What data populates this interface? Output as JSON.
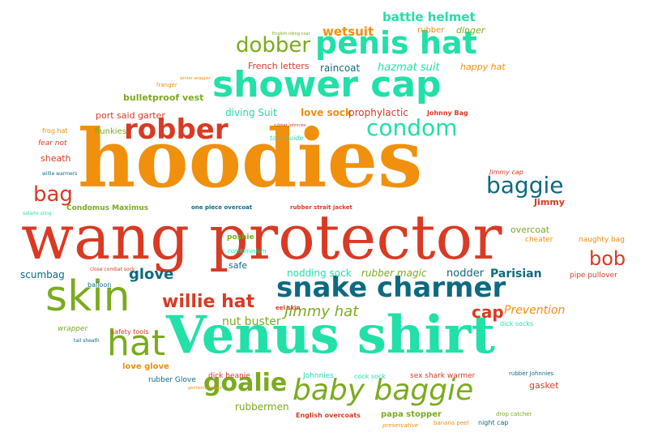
{
  "words": [
    "hoodies",
    "wang protector",
    "Venus shirt",
    "shower cap",
    "penis hat",
    "skin",
    "snake charmer",
    "baby baggie",
    "robber",
    "condom",
    "hat",
    "goalie",
    "baggie",
    "willie hat",
    "bag",
    "bob",
    "dobber",
    "wetsuit",
    "battle helmet",
    "cap",
    "glove",
    "Jimmy hat",
    "Parisian",
    "overcoat",
    "Prevention",
    "nut buster",
    "rubber magic",
    "nodding sock",
    "nodder",
    "raincoat",
    "hazmat suit",
    "love sock",
    "diving Suit",
    "prophylactic",
    "port said garter",
    "bulletproof vest",
    "French letters",
    "happy hat",
    "rubber",
    "dinger",
    "Johnny Bag",
    "flunkies",
    "Condomus Maximus",
    "one piece overcoat",
    "rubber strait jacket",
    "Jimmy",
    "Jimmy cap",
    "cheater",
    "naughty bag",
    "pipe pullover",
    "safe",
    "poshie",
    "condominium",
    "scumbag",
    "balloon",
    "close combat sock",
    "eel skin",
    "dick socks",
    "wrapper",
    "safety tools",
    "tail sheath",
    "love glove",
    "rubber Glove",
    "dick beanie",
    "Johnnies",
    "cock sock",
    "sex shark warmer",
    "rubber Johnnies",
    "gasket",
    "rubbermen",
    "English overcoats",
    "papa stopper",
    "drop catcher",
    "preservative",
    "banana peel",
    "night cap",
    "fear not",
    "sheath",
    "frog hat",
    "willie warmers",
    "salami sling",
    "tour guide",
    "rubber Johnnies",
    "franger",
    "winter wrapper",
    "English riding coat",
    "gentleman piece"
  ]
}
